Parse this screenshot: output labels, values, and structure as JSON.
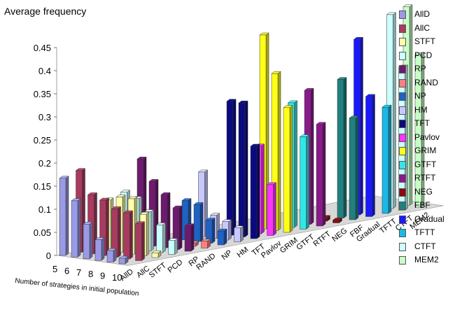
{
  "chart_data": {
    "type": "bar",
    "subtype": "3d-bar",
    "title": "",
    "ylabel": "Average frequency",
    "zlabel": "Number of strategies in initial population",
    "ylim": [
      0,
      0.45
    ],
    "yticks": [
      "0",
      "0.05",
      "0.1",
      "0.15",
      "0.2",
      "0.25",
      "0.3",
      "0.35",
      "0.4",
      "0.45"
    ],
    "grid": false,
    "legend_position": "right",
    "rows": [
      "5",
      "6",
      "7",
      "8",
      "9",
      "10"
    ],
    "categories": [
      "AllD",
      "AllC",
      "STFT",
      "PCD",
      "RP",
      "RAND",
      "NP",
      "HM",
      "TFT",
      "Pavlov",
      "GRIM",
      "GTFT",
      "RTFT",
      "NEG",
      "FBF",
      "Gradual",
      "TFTT",
      "CTFT",
      "MEM2"
    ],
    "colors": [
      "#9a9ae6",
      "#a83b5f",
      "#ffffa8",
      "#c8ffff",
      "#6e1a6e",
      "#ff8080",
      "#1f62c6",
      "#c8c8ff",
      "#0a0a80",
      "#ff33ff",
      "#ffff1a",
      "#33e6e6",
      "#8a1a8a",
      "#8a0a0a",
      "#1f8080",
      "#1a1aff",
      "#1ab8e6",
      "#ccffff",
      "#c8ffc8"
    ],
    "series": [
      {
        "name": "5",
        "values": [
          0.167,
          0.177,
          0,
          0,
          0,
          0,
          0,
          0,
          0,
          0,
          0,
          0,
          0,
          0,
          0,
          0,
          0,
          0,
          0
        ]
      },
      {
        "name": "6",
        "values": [
          0.122,
          0.128,
          0.11,
          0.12,
          0.185,
          0,
          0,
          0,
          0,
          0,
          0,
          0,
          0,
          0,
          0,
          0,
          0,
          0,
          0
        ]
      },
      {
        "name": "7",
        "values": [
          0.075,
          0.12,
          0.12,
          0.11,
          0.14,
          0,
          0.085,
          0.14,
          0,
          0,
          0,
          0,
          0,
          0,
          0,
          0,
          0,
          0,
          0
        ]
      },
      {
        "name": "8",
        "values": [
          0.045,
          0.105,
          0.12,
          0.085,
          0.115,
          0,
          0.08,
          0.05,
          0.29,
          0,
          0.42,
          0,
          0,
          0,
          0,
          0,
          0,
          0,
          0
        ]
      },
      {
        "name": "9",
        "values": [
          0.025,
          0.1,
          0.09,
          0.06,
          0.09,
          0.007,
          0.05,
          0.04,
          0.29,
          0.19,
          0.34,
          0.27,
          0.29,
          0.008,
          0.3,
          0.38,
          0,
          0.42,
          0.43
        ]
      },
      {
        "name": "10",
        "values": [
          0.012,
          0.08,
          0.01,
          0.03,
          0.055,
          0.015,
          0.03,
          0.03,
          0.2,
          0.11,
          0.27,
          0.2,
          0.22,
          0.006,
          0.22,
          0.26,
          0.23,
          0.31,
          0.33
        ]
      }
    ]
  }
}
